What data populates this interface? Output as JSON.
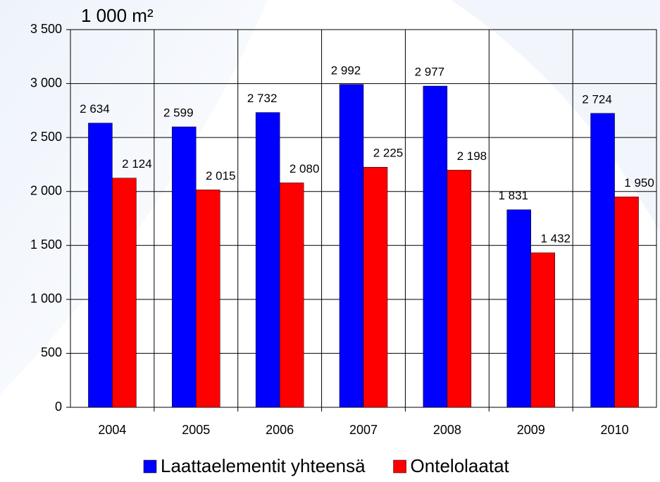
{
  "chart_data": {
    "type": "bar",
    "y_label": "1 000 m²",
    "categories": [
      "2004",
      "2005",
      "2006",
      "2007",
      "2008",
      "2009",
      "2010"
    ],
    "series": [
      {
        "name": "Laattaelementit yhteensä",
        "color": "#0000ff",
        "values": [
          2634,
          2599,
          2732,
          2992,
          2977,
          1831,
          2724
        ],
        "value_labels": [
          "2 634",
          "2 599",
          "2 732",
          "2 992",
          "2 977",
          "1 831",
          "2 724"
        ]
      },
      {
        "name": "Ontelolaatat",
        "color": "#ff0000",
        "values": [
          2124,
          2015,
          2080,
          2225,
          2198,
          1432,
          1950
        ],
        "value_labels": [
          "2 124",
          "2 015",
          "2 080",
          "2 225",
          "2 198",
          "1 432",
          "1 950"
        ]
      }
    ],
    "ylim": [
      0,
      3500
    ],
    "yticks": [
      0,
      500,
      {
        "value": 1000,
        "label": "1 000"
      },
      {
        "value": 1500,
        "label": "1 500"
      },
      {
        "value": 2000,
        "label": "2 000"
      },
      {
        "value": 2500,
        "label": "2 500"
      },
      {
        "value": 3000,
        "label": "3 000"
      },
      {
        "value": 3500,
        "label": "3 500"
      }
    ],
    "grid": true,
    "legend": "bottom"
  }
}
